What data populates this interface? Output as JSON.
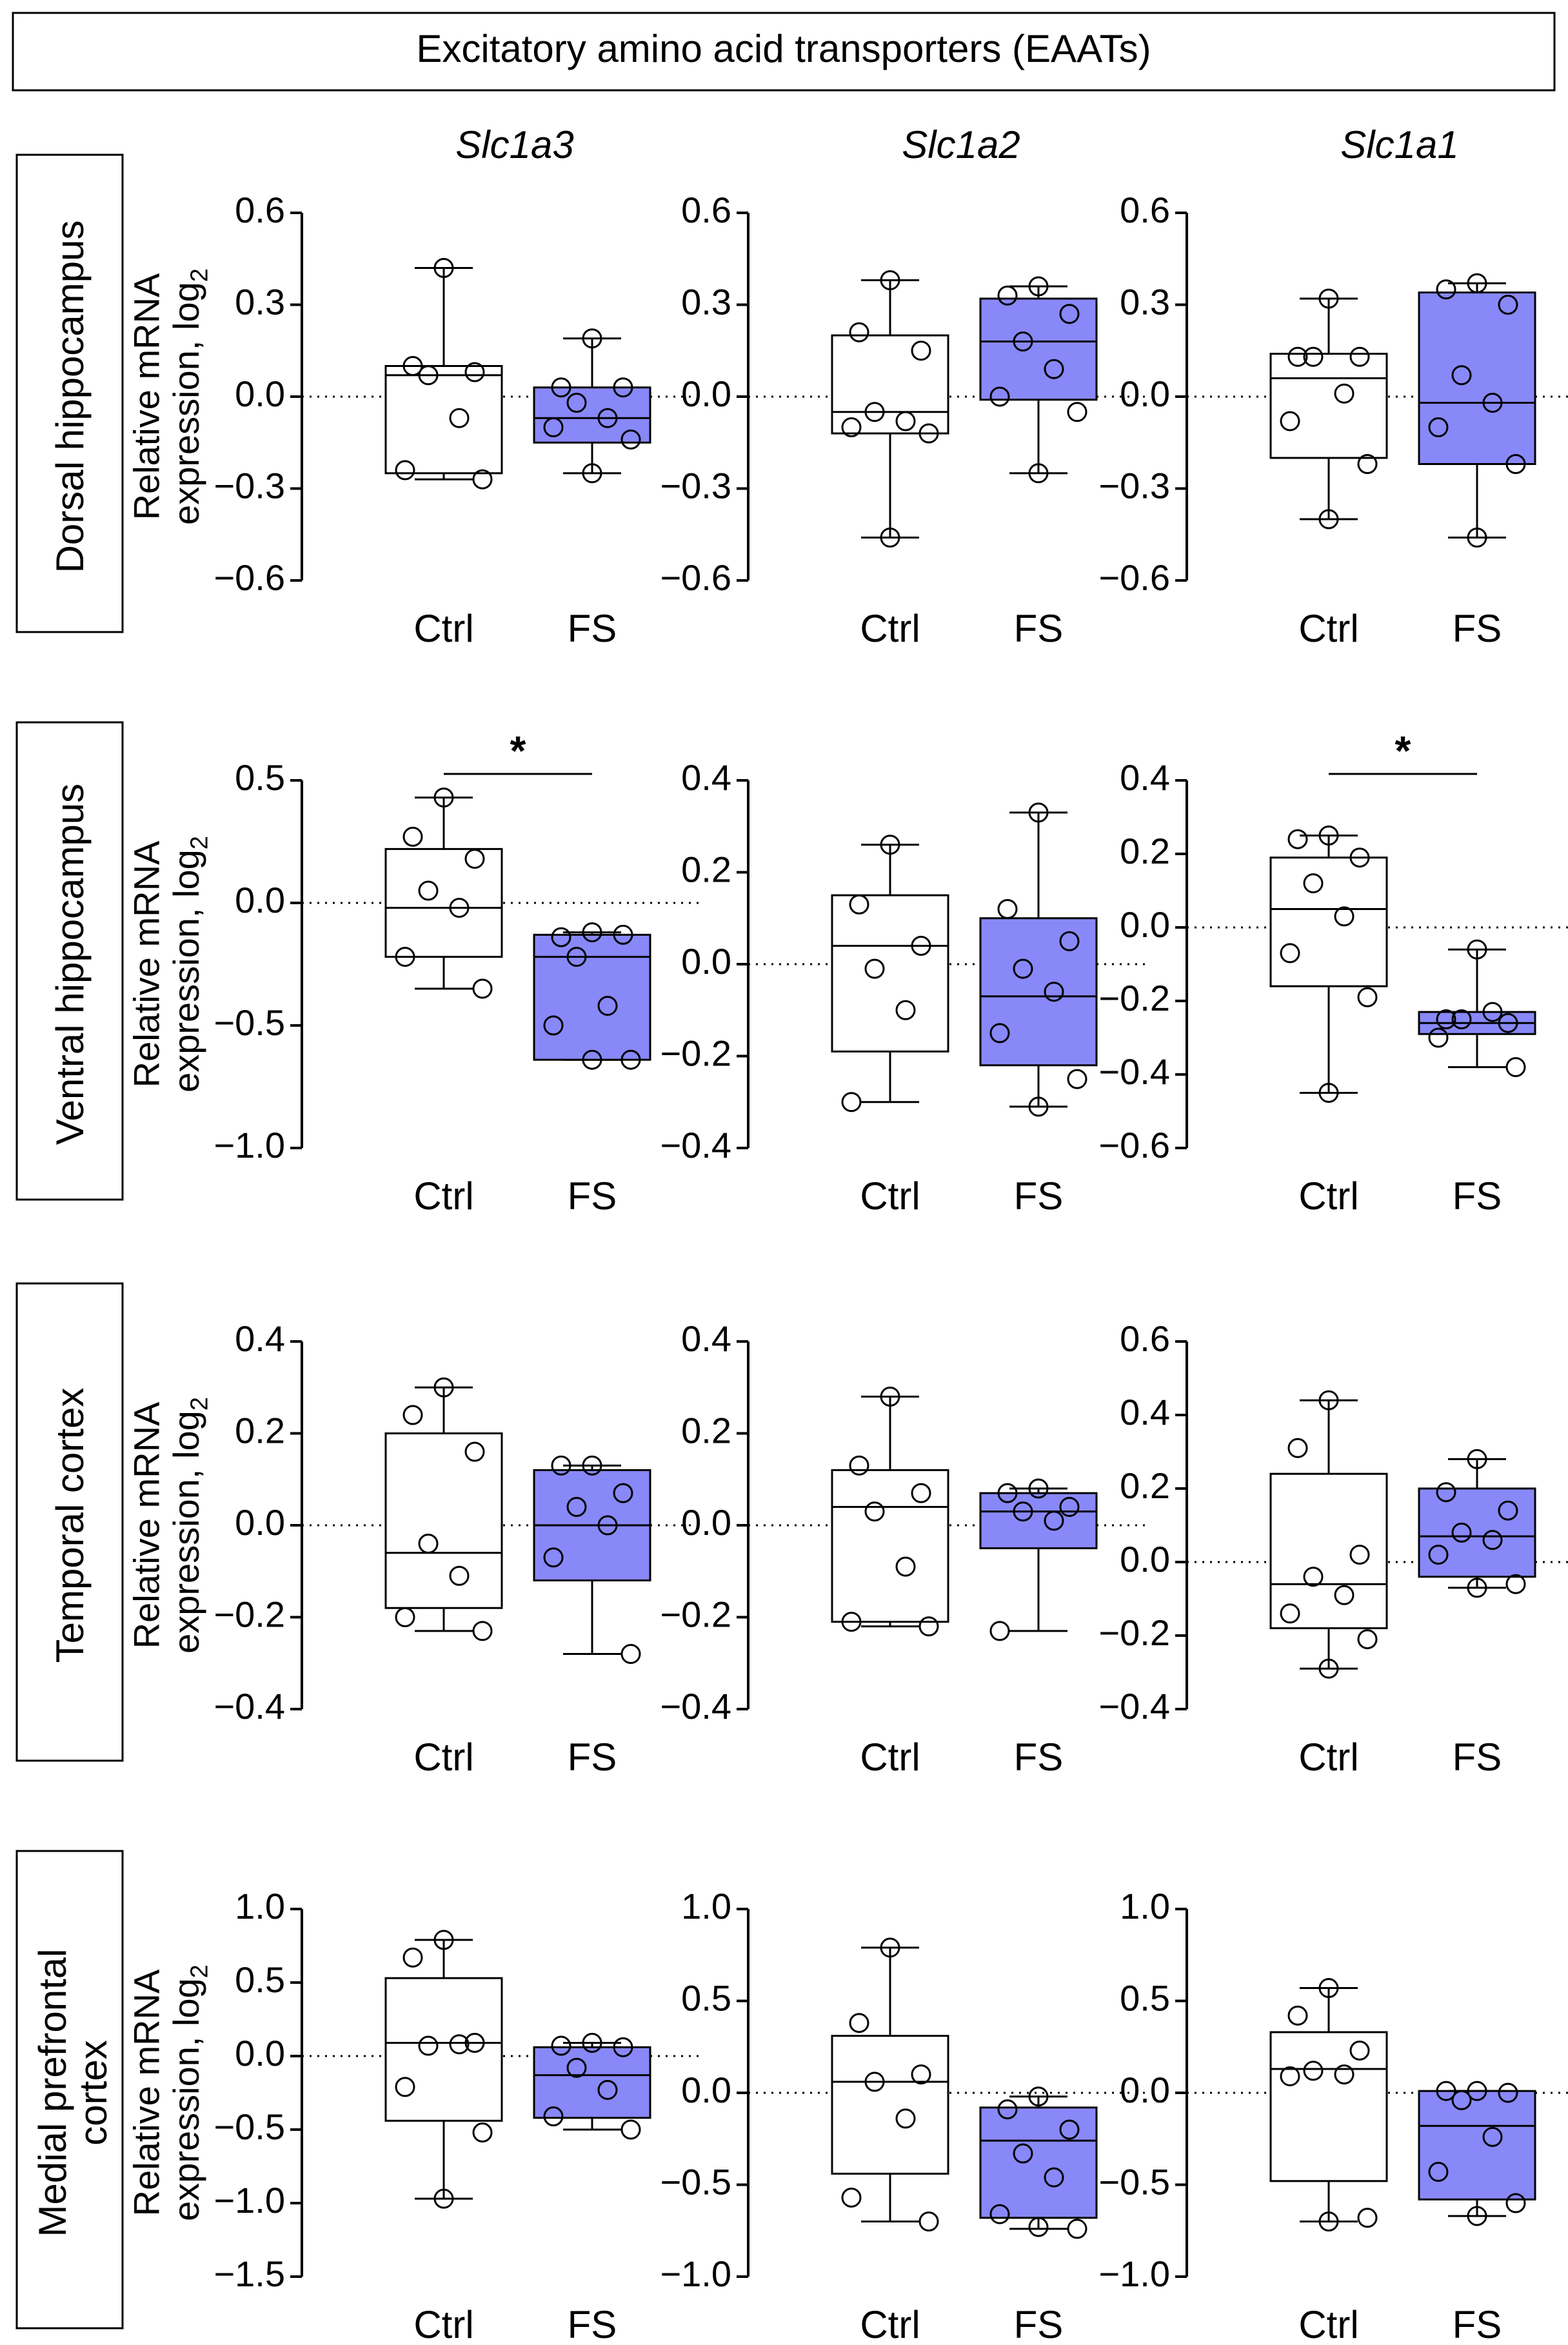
{
  "figure_title": "Excitatory amino acid transporters (EAATs)",
  "genes": [
    "Slc1a3",
    "Slc1a2",
    "Slc1a1"
  ],
  "regions": [
    "Dorsal hippocampus",
    "Ventral hippocampus",
    "Temporal cortex",
    "Medial prefrontal cortex"
  ],
  "y_axis_label": {
    "line1": "Relative mRNA",
    "line2": "expression, log",
    "subscript": "2"
  },
  "groups": [
    "Ctrl",
    "FS"
  ],
  "colors": {
    "ctrl_fill": "#ffffff",
    "fs_fill": "#8888f8",
    "stroke": "#000000"
  },
  "chart_data": [
    {
      "type": "box",
      "region": "Dorsal hippocampus",
      "gene": "Slc1a3",
      "ylim": [
        -0.6,
        0.6
      ],
      "ticks": [
        0.6,
        0.3,
        0.0,
        -0.3,
        -0.6
      ],
      "tick_labels": [
        "0.6",
        "0.3",
        "0.0",
        "−0.3",
        "−0.6"
      ],
      "significance": null,
      "ctrl": {
        "min": -0.27,
        "q1": -0.25,
        "median": 0.07,
        "q3": 0.1,
        "max": 0.42,
        "points": [
          0.42,
          0.1,
          0.08,
          0.07,
          -0.07,
          -0.24,
          -0.27
        ]
      },
      "fs": {
        "min": -0.25,
        "q1": -0.15,
        "median": -0.07,
        "q3": 0.03,
        "max": 0.19,
        "points": [
          0.19,
          0.03,
          0.03,
          -0.02,
          -0.07,
          -0.1,
          -0.14,
          -0.25
        ]
      }
    },
    {
      "type": "box",
      "region": "Dorsal hippocampus",
      "gene": "Slc1a2",
      "ylim": [
        -0.6,
        0.6
      ],
      "ticks": [
        0.6,
        0.3,
        0.0,
        -0.3,
        -0.6
      ],
      "tick_labels": [
        "0.6",
        "0.3",
        "0.0",
        "−0.3",
        "−0.6"
      ],
      "significance": null,
      "ctrl": {
        "min": -0.46,
        "q1": -0.12,
        "median": -0.05,
        "q3": 0.2,
        "max": 0.38,
        "points": [
          0.38,
          0.21,
          0.15,
          -0.05,
          -0.08,
          -0.1,
          -0.12,
          -0.46
        ]
      },
      "fs": {
        "min": -0.25,
        "q1": -0.01,
        "median": 0.18,
        "q3": 0.32,
        "max": 0.36,
        "points": [
          0.36,
          0.33,
          0.27,
          0.18,
          0.09,
          0.0,
          -0.05,
          -0.25
        ]
      }
    },
    {
      "type": "box",
      "region": "Dorsal hippocampus",
      "gene": "Slc1a1",
      "ylim": [
        -0.6,
        0.6
      ],
      "ticks": [
        0.6,
        0.3,
        0.0,
        -0.3,
        -0.6
      ],
      "tick_labels": [
        "0.6",
        "0.3",
        "0.0",
        "−0.3",
        "−0.6"
      ],
      "significance": null,
      "ctrl": {
        "min": -0.4,
        "q1": -0.2,
        "median": 0.06,
        "q3": 0.14,
        "max": 0.32,
        "points": [
          0.32,
          0.13,
          0.13,
          0.13,
          0.01,
          -0.08,
          -0.22,
          -0.4
        ]
      },
      "fs": {
        "min": -0.46,
        "q1": -0.22,
        "median": -0.02,
        "q3": 0.34,
        "max": 0.37,
        "points": [
          0.37,
          0.35,
          0.3,
          0.07,
          -0.02,
          -0.1,
          -0.22,
          -0.46
        ]
      }
    },
    {
      "type": "box",
      "region": "Ventral hippocampus",
      "gene": "Slc1a3",
      "ylim": [
        -1.0,
        0.5
      ],
      "ticks": [
        0.5,
        0.0,
        -0.5,
        -1.0
      ],
      "tick_labels": [
        "0.5",
        "0.0",
        "−0.5",
        "−1.0"
      ],
      "significance": "*",
      "ctrl": {
        "min": -0.35,
        "q1": -0.22,
        "median": -0.02,
        "q3": 0.22,
        "max": 0.43,
        "points": [
          0.43,
          0.27,
          0.18,
          0.05,
          -0.02,
          -0.22,
          -0.35
        ]
      },
      "fs": {
        "min": -0.64,
        "q1": -0.64,
        "median": -0.22,
        "q3": -0.13,
        "max": -0.12,
        "points": [
          -0.12,
          -0.14,
          -0.13,
          -0.22,
          -0.42,
          -0.5,
          -0.64,
          -0.64
        ]
      }
    },
    {
      "type": "box",
      "region": "Ventral hippocampus",
      "gene": "Slc1a2",
      "ylim": [
        -0.4,
        0.4
      ],
      "ticks": [
        0.4,
        0.2,
        0.0,
        -0.2,
        -0.4
      ],
      "tick_labels": [
        "0.4",
        "0.2",
        "0.0",
        "−0.2",
        "−0.4"
      ],
      "significance": null,
      "ctrl": {
        "min": -0.3,
        "q1": -0.19,
        "median": 0.04,
        "q3": 0.15,
        "max": 0.26,
        "points": [
          0.26,
          0.13,
          0.04,
          -0.01,
          -0.1,
          -0.3
        ]
      },
      "fs": {
        "min": -0.31,
        "q1": -0.22,
        "median": -0.07,
        "q3": 0.1,
        "max": 0.33,
        "points": [
          0.33,
          0.12,
          0.05,
          -0.01,
          -0.06,
          -0.15,
          -0.25,
          -0.31
        ]
      }
    },
    {
      "type": "box",
      "region": "Ventral hippocampus",
      "gene": "Slc1a1",
      "ylim": [
        -0.6,
        0.4
      ],
      "ticks": [
        0.4,
        0.2,
        0.0,
        -0.2,
        -0.4,
        -0.6
      ],
      "tick_labels": [
        "0.4",
        "0.2",
        "0.0",
        "−0.2",
        "−0.4",
        "−0.6"
      ],
      "significance": "*",
      "ctrl": {
        "min": -0.45,
        "q1": -0.16,
        "median": 0.05,
        "q3": 0.19,
        "max": 0.25,
        "points": [
          0.25,
          0.24,
          0.19,
          0.12,
          0.03,
          -0.07,
          -0.19,
          -0.45
        ]
      },
      "fs": {
        "min": -0.38,
        "q1": -0.29,
        "median": -0.26,
        "q3": -0.23,
        "max": -0.06,
        "points": [
          -0.06,
          -0.25,
          -0.26,
          -0.25,
          -0.23,
          -0.3,
          -0.38
        ]
      }
    },
    {
      "type": "box",
      "region": "Temporal cortex",
      "gene": "Slc1a3",
      "ylim": [
        -0.4,
        0.4
      ],
      "ticks": [
        0.4,
        0.2,
        0.0,
        -0.2,
        -0.4
      ],
      "tick_labels": [
        "0.4",
        "0.2",
        "0.0",
        "−0.2",
        "−0.4"
      ],
      "significance": null,
      "ctrl": {
        "min": -0.23,
        "q1": -0.18,
        "median": -0.06,
        "q3": 0.2,
        "max": 0.3,
        "points": [
          0.3,
          0.24,
          0.16,
          -0.04,
          -0.11,
          -0.2,
          -0.23
        ]
      },
      "fs": {
        "min": -0.28,
        "q1": -0.12,
        "median": 0.0,
        "q3": 0.12,
        "max": 0.13,
        "points": [
          0.13,
          0.13,
          0.07,
          0.04,
          0.0,
          -0.07,
          -0.28
        ]
      }
    },
    {
      "type": "box",
      "region": "Temporal cortex",
      "gene": "Slc1a2",
      "ylim": [
        -0.4,
        0.4
      ],
      "ticks": [
        0.4,
        0.2,
        0.0,
        -0.2,
        -0.4
      ],
      "tick_labels": [
        "0.4",
        "0.2",
        "0.0",
        "−0.2",
        "−0.4"
      ],
      "significance": null,
      "ctrl": {
        "min": -0.22,
        "q1": -0.21,
        "median": 0.04,
        "q3": 0.12,
        "max": 0.28,
        "points": [
          0.28,
          0.13,
          0.07,
          0.03,
          -0.09,
          -0.21,
          -0.22
        ]
      },
      "fs": {
        "min": -0.23,
        "q1": -0.05,
        "median": 0.03,
        "q3": 0.07,
        "max": 0.08,
        "points": [
          0.08,
          0.07,
          0.04,
          0.03,
          0.01,
          -0.23
        ]
      }
    },
    {
      "type": "box",
      "region": "Temporal cortex",
      "gene": "Slc1a1",
      "ylim": [
        -0.4,
        0.6
      ],
      "ticks": [
        0.6,
        0.4,
        0.2,
        0.0,
        -0.2,
        -0.4
      ],
      "tick_labels": [
        "0.6",
        "0.4",
        "0.2",
        "0.0",
        "−0.2",
        "−0.4"
      ],
      "significance": null,
      "ctrl": {
        "min": -0.29,
        "q1": -0.18,
        "median": -0.06,
        "q3": 0.24,
        "max": 0.44,
        "points": [
          0.44,
          0.31,
          0.02,
          -0.04,
          -0.09,
          -0.14,
          -0.21,
          -0.29
        ]
      },
      "fs": {
        "min": -0.07,
        "q1": -0.04,
        "median": 0.07,
        "q3": 0.2,
        "max": 0.28,
        "points": [
          0.28,
          0.19,
          0.14,
          0.08,
          0.06,
          0.02,
          -0.06,
          -0.07
        ]
      }
    },
    {
      "type": "box",
      "region": "Medial prefrontal cortex",
      "gene": "Slc1a3",
      "ylim": [
        -1.5,
        1.0
      ],
      "ticks": [
        1.0,
        0.5,
        0.0,
        -0.5,
        -1.0,
        -1.5
      ],
      "tick_labels": [
        "1.0",
        "0.5",
        "0.0",
        "−0.5",
        "−1.0",
        "−1.5"
      ],
      "significance": null,
      "ctrl": {
        "min": -0.97,
        "q1": -0.44,
        "median": 0.09,
        "q3": 0.53,
        "max": 0.79,
        "points": [
          0.79,
          0.67,
          0.09,
          0.07,
          0.08,
          -0.21,
          -0.52,
          -0.97
        ]
      },
      "fs": {
        "min": -0.5,
        "q1": -0.42,
        "median": -0.13,
        "q3": 0.06,
        "max": 0.09,
        "points": [
          0.09,
          0.07,
          0.06,
          -0.08,
          -0.23,
          -0.41,
          -0.5
        ]
      }
    },
    {
      "type": "box",
      "region": "Medial prefrontal cortex",
      "gene": "Slc1a2",
      "ylim": [
        -1.0,
        1.0
      ],
      "ticks": [
        1.0,
        0.5,
        0.0,
        -0.5,
        -1.0
      ],
      "tick_labels": [
        "1.0",
        "0.5",
        "0.0",
        "−0.5",
        "−1.0"
      ],
      "significance": null,
      "ctrl": {
        "min": -0.7,
        "q1": -0.44,
        "median": 0.06,
        "q3": 0.31,
        "max": 0.79,
        "points": [
          0.79,
          0.38,
          0.1,
          0.06,
          -0.14,
          -0.57,
          -0.7
        ]
      },
      "fs": {
        "min": -0.74,
        "q1": -0.68,
        "median": -0.26,
        "q3": -0.08,
        "max": -0.02,
        "points": [
          -0.02,
          -0.09,
          -0.2,
          -0.33,
          -0.46,
          -0.66,
          -0.74,
          -0.73
        ]
      }
    },
    {
      "type": "box",
      "region": "Medial prefrontal cortex",
      "gene": "Slc1a1",
      "ylim": [
        -1.0,
        1.0
      ],
      "ticks": [
        1.0,
        0.5,
        0.0,
        -0.5,
        -1.0
      ],
      "tick_labels": [
        "1.0",
        "0.5",
        "0.0",
        "−0.5",
        "−1.0"
      ],
      "significance": null,
      "ctrl": {
        "min": -0.7,
        "q1": -0.48,
        "median": 0.13,
        "q3": 0.33,
        "max": 0.57,
        "points": [
          0.57,
          0.42,
          0.23,
          0.12,
          0.1,
          0.09,
          -0.68,
          -0.7
        ]
      },
      "fs": {
        "min": -0.67,
        "q1": -0.58,
        "median": -0.18,
        "q3": 0.01,
        "max": 0.01,
        "points": [
          0.01,
          0.01,
          0.0,
          -0.04,
          -0.24,
          -0.43,
          -0.6,
          -0.67
        ]
      }
    }
  ]
}
